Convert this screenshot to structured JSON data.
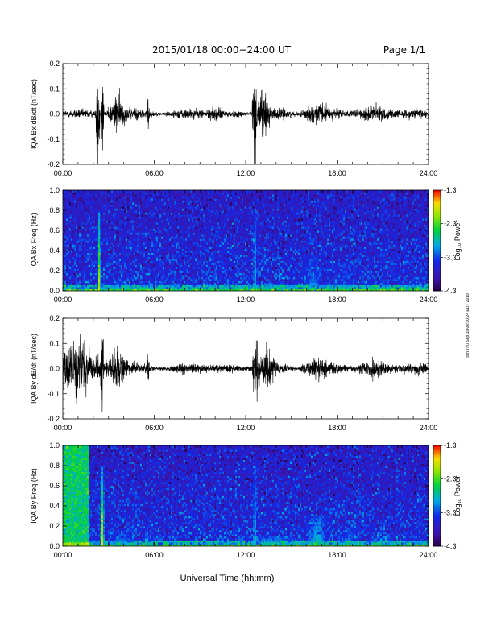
{
  "header": {
    "title": "2015/01/18  00:00−24:00 UT",
    "page": "Page 1/1"
  },
  "side_note": "ssh Thu Sep 19 08:00:24 EDT 2019",
  "x_axis": {
    "label": "Universal Time (hh:mm)",
    "range_hours": [
      0,
      24
    ],
    "ticks": [
      "00:00",
      "06:00",
      "12:00",
      "18:00",
      "24:00"
    ]
  },
  "colorbar": {
    "label": "Log₁₀ Power",
    "range": [
      -4.3,
      -1.3
    ],
    "ticks": [
      "-1.3",
      "-2.3",
      "-3.3",
      "-4.3"
    ]
  },
  "chart_data": [
    {
      "type": "line",
      "name": "bx_dbdt",
      "ylabel": "IQA Bx dB/dt (nT/sec)",
      "ylim": [
        -0.2,
        0.2
      ],
      "yticks": [
        "0.2",
        "0.1",
        "0.0",
        "-0.1",
        "-0.2"
      ],
      "baseline_noise": 0.012,
      "bursts": [
        {
          "t": 2.3,
          "width": 0.12,
          "amp": 0.22
        },
        {
          "t": 2.6,
          "width": 0.1,
          "amp": 0.18
        },
        {
          "t": 3.6,
          "width": 0.7,
          "amp": 0.06
        },
        {
          "t": 5.6,
          "width": 0.08,
          "amp": 0.06
        },
        {
          "t": 10.0,
          "width": 0.7,
          "amp": 0.025
        },
        {
          "t": 12.6,
          "width": 0.18,
          "amp": 0.15
        },
        {
          "t": 13.2,
          "width": 0.5,
          "amp": 0.08
        },
        {
          "t": 16.8,
          "width": 1.2,
          "amp": 0.035
        },
        {
          "t": 20.5,
          "width": 1.5,
          "amp": 0.03
        }
      ]
    },
    {
      "type": "heatmap",
      "name": "bx_spectrum",
      "ylabel": "IQA Bx Freq (Hz)",
      "ylim": [
        0.0,
        1.0
      ],
      "yticks": [
        "1.0",
        "0.8",
        "0.6",
        "0.4",
        "0.2",
        "0.0"
      ],
      "background_log_power": -3.7,
      "features": [
        {
          "t": 2.4,
          "tw": 0.15,
          "fmax": 0.8,
          "level": -1.6
        },
        {
          "t": 3.7,
          "tw": 0.6,
          "fmax": 0.1,
          "level": -2.9
        },
        {
          "t": 5.5,
          "tw": 0.05,
          "fmax": 0.8,
          "level": -3.1
        },
        {
          "t": 12.6,
          "tw": 0.15,
          "fmax": 0.8,
          "level": -2.6
        },
        {
          "t": 13.8,
          "tw": 2.0,
          "fmax": 0.08,
          "level": -2.5
        },
        {
          "t": 16.4,
          "tw": 0.6,
          "fmax": 0.35,
          "level": -3.0
        },
        {
          "t": 18.5,
          "tw": 0.7,
          "fmax": 0.3,
          "level": -3.3
        },
        {
          "t": 21.9,
          "tw": 0.04,
          "fmax": 0.8,
          "level": -2.4
        }
      ]
    },
    {
      "type": "line",
      "name": "by_dbdt",
      "ylabel": "IQA By dB/dt (nT/sec)",
      "ylim": [
        -0.2,
        0.2
      ],
      "yticks": [
        "0.2",
        "0.1",
        "0.0",
        "-0.1",
        "-0.2"
      ],
      "baseline_noise": 0.012,
      "bursts": [
        {
          "t": 0.8,
          "width": 1.7,
          "amp": 0.09
        },
        {
          "t": 2.6,
          "width": 0.12,
          "amp": 0.21
        },
        {
          "t": 3.6,
          "width": 0.8,
          "amp": 0.06
        },
        {
          "t": 5.6,
          "width": 0.08,
          "amp": 0.06
        },
        {
          "t": 12.7,
          "width": 0.25,
          "amp": 0.13
        },
        {
          "t": 13.5,
          "width": 0.6,
          "amp": 0.07
        },
        {
          "t": 16.8,
          "width": 1.2,
          "amp": 0.04
        },
        {
          "t": 20.5,
          "width": 1.5,
          "amp": 0.03
        }
      ]
    },
    {
      "type": "heatmap",
      "name": "by_spectrum",
      "ylabel": "IQA By Freq (Hz)",
      "ylim": [
        0.0,
        1.0
      ],
      "yticks": [
        "1.0",
        "0.8",
        "0.6",
        "0.4",
        "0.2",
        "0.0"
      ],
      "background_log_power": -3.7,
      "features": [
        {
          "t": 0.85,
          "tw": 1.7,
          "fmax": 1.0,
          "level": -2.6,
          "block": true
        },
        {
          "t": 2.6,
          "tw": 0.15,
          "fmax": 0.8,
          "level": -1.7
        },
        {
          "t": 3.8,
          "tw": 0.7,
          "fmax": 0.15,
          "level": -2.8
        },
        {
          "t": 5.5,
          "tw": 0.2,
          "fmax": 0.2,
          "level": -2.7
        },
        {
          "t": 12.6,
          "tw": 0.15,
          "fmax": 0.8,
          "level": -2.6
        },
        {
          "t": 13.9,
          "tw": 2.0,
          "fmax": 0.1,
          "level": -2.5
        },
        {
          "t": 16.7,
          "tw": 0.9,
          "fmax": 0.3,
          "level": -2.6
        },
        {
          "t": 18.8,
          "tw": 0.8,
          "fmax": 0.2,
          "level": -3.1
        },
        {
          "t": 21.9,
          "tw": 0.04,
          "fmax": 0.8,
          "level": -2.4
        }
      ]
    }
  ]
}
